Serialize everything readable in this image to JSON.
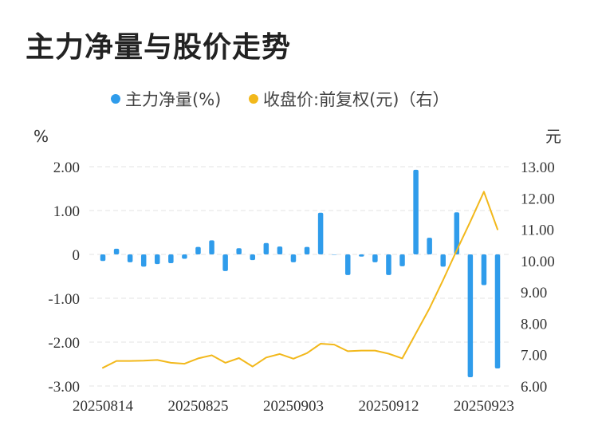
{
  "title": "主力净量与股价走势",
  "colors": {
    "bar": "#2F9CEB",
    "line": "#F2B81B",
    "grid": "#E3E3E3"
  },
  "chart_data": {
    "type": "bar+line",
    "legend": {
      "placement": "top-center",
      "items": [
        {
          "name": "主力净量(%)",
          "icon": "dot",
          "color": "#2F9CEB"
        },
        {
          "name": "收盘价:前复权(元)（右）",
          "icon": "dot",
          "color": "#F2B81B"
        }
      ]
    },
    "left_axis": {
      "unit": "%",
      "ticks": [
        2.0,
        1.0,
        0,
        -1.0,
        -2.0,
        -3.0
      ],
      "tick_labels": [
        "2.00",
        "1.00",
        "0",
        "-1.00",
        "-2.00",
        "-3.00"
      ],
      "ylim": [
        -3.0,
        2.0
      ]
    },
    "right_axis": {
      "unit": "元",
      "ticks": [
        13.0,
        12.0,
        11.0,
        10.0,
        9.0,
        8.0,
        7.0,
        6.0
      ],
      "tick_labels": [
        "13.00",
        "12.00",
        "11.00",
        "10.00",
        "9.00",
        "8.00",
        "7.00",
        "6.00"
      ],
      "ylim": [
        6.0,
        13.0
      ]
    },
    "x_tick_labels": [
      "20250814",
      "20250825",
      "20250903",
      "20250912",
      "20250923"
    ],
    "x_tick_indices": [
      0,
      7,
      14,
      21,
      28
    ],
    "categories": [
      "20250814",
      "20250815",
      "20250818",
      "20250819",
      "20250820",
      "20250821",
      "20250822",
      "20250825",
      "20250826",
      "20250827",
      "20250828",
      "20250829",
      "20250901",
      "20250902",
      "20250903",
      "20250904",
      "20250905",
      "20250908",
      "20250909",
      "20250910",
      "20250911",
      "20250912",
      "20250915",
      "20250916",
      "20250917",
      "20250918",
      "20250919",
      "20250922",
      "20250923",
      "20250924"
    ],
    "series": [
      {
        "name": "主力净量(%)",
        "type": "bar",
        "axis": "left",
        "values": [
          -0.15,
          0.13,
          -0.18,
          -0.28,
          -0.22,
          -0.2,
          -0.1,
          0.17,
          0.32,
          -0.38,
          0.14,
          -0.13,
          0.26,
          0.18,
          -0.18,
          0.17,
          0.95,
          0.0,
          -0.47,
          -0.05,
          -0.18,
          -0.47,
          -0.27,
          1.93,
          0.38,
          -0.28,
          0.96,
          -2.8,
          -0.7,
          -2.6
        ]
      },
      {
        "name": "收盘价:前复权(元)（右）",
        "type": "line",
        "axis": "right",
        "values": [
          6.58,
          6.8,
          6.8,
          6.81,
          6.83,
          6.74,
          6.71,
          6.88,
          6.98,
          6.74,
          6.89,
          6.62,
          6.91,
          7.02,
          6.87,
          7.05,
          7.35,
          7.32,
          7.11,
          7.13,
          7.13,
          7.03,
          6.88,
          7.68,
          8.48,
          9.38,
          10.33,
          11.25,
          12.2,
          11.0
        ]
      }
    ]
  }
}
